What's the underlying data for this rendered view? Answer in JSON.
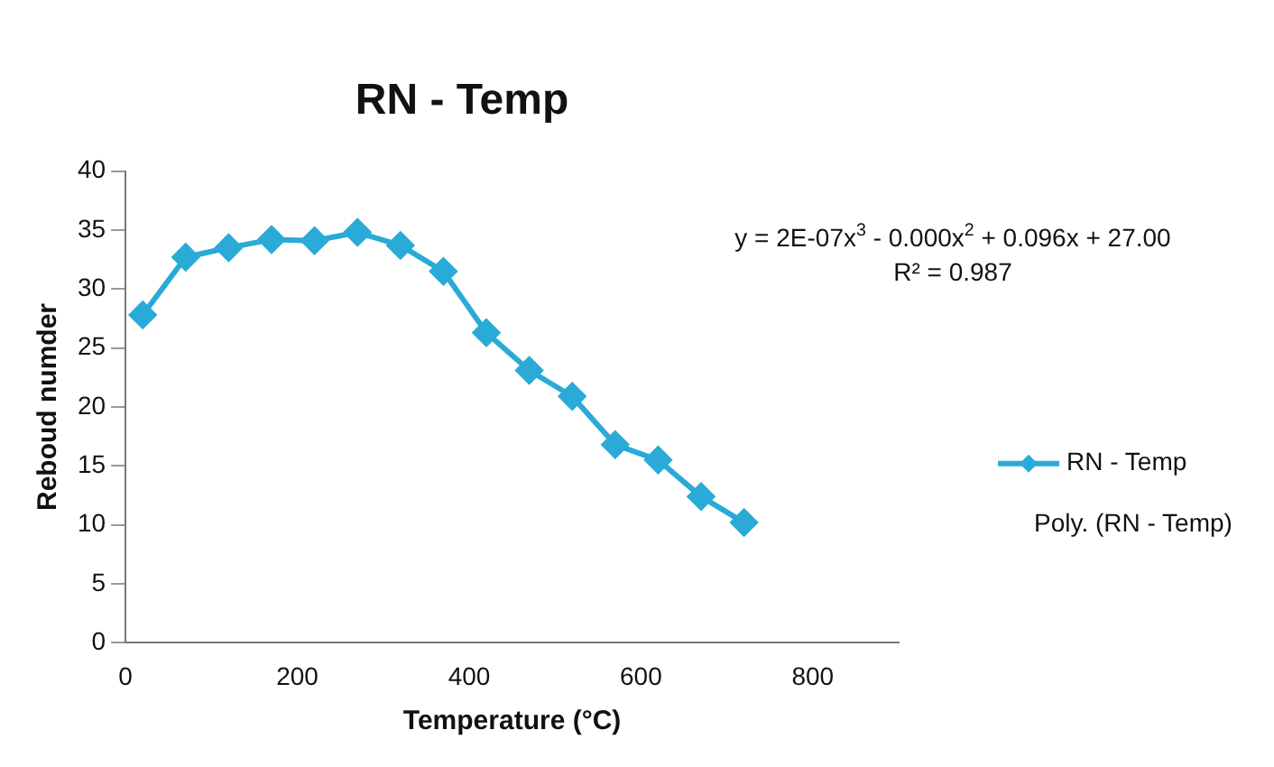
{
  "chart_data": {
    "type": "line",
    "title": "RN - Temp",
    "xlabel": "Temperature (°C)",
    "ylabel": "Reboud numder",
    "x": [
      20,
      70,
      120,
      170,
      220,
      270,
      320,
      370,
      420,
      470,
      520,
      570,
      620,
      670,
      720
    ],
    "series": [
      {
        "name": "RN - Temp",
        "color": "#2aaad6",
        "values": [
          27.8,
          32.7,
          33.5,
          34.2,
          34.1,
          34.8,
          33.7,
          31.5,
          26.3,
          23.1,
          20.9,
          16.8,
          15.5,
          12.4,
          10.2
        ]
      }
    ],
    "xlim": [
      0,
      900
    ],
    "xticks": [
      0,
      200,
      400,
      600,
      800
    ],
    "ylim": [
      0,
      40
    ],
    "yticks": [
      0,
      5,
      10,
      15,
      20,
      25,
      30,
      35,
      40
    ],
    "grid": false,
    "legend": "right",
    "marker": "diamond",
    "line_style": "solid",
    "annotations": [
      "y = 2E-07x$^{3}$ - 0.000x$^{2}$ + 0.096x + 27.00",
      "R² = 0.987",
      "Poly. (RN - Temp)"
    ]
  }
}
